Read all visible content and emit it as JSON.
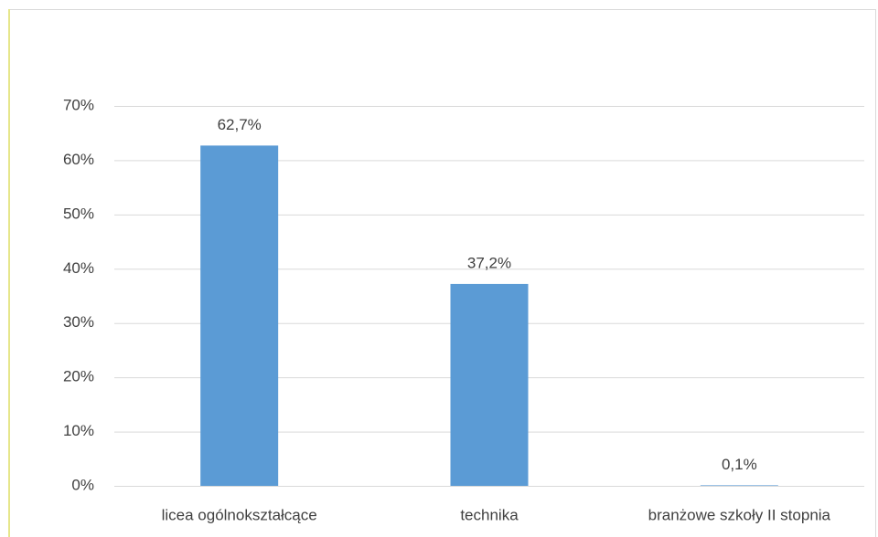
{
  "chart_data": {
    "type": "bar",
    "categories": [
      "licea ogólnokształcące",
      "technika",
      "branżowe szkoły II stopnia"
    ],
    "values": [
      62.7,
      37.2,
      0.1
    ],
    "value_labels": [
      "62,7%",
      "37,2%",
      "0,1%"
    ],
    "color": "#5b9bd5",
    "ylim": [
      0,
      70
    ],
    "yticks": [
      {
        "value": 0,
        "label": "0%"
      },
      {
        "value": 10,
        "label": "10%"
      },
      {
        "value": 20,
        "label": "20%"
      },
      {
        "value": 30,
        "label": "30%"
      },
      {
        "value": 40,
        "label": "40%"
      },
      {
        "value": 50,
        "label": "50%"
      },
      {
        "value": 60,
        "label": "60%"
      },
      {
        "value": 70,
        "label": "70%"
      }
    ],
    "grid": true
  }
}
